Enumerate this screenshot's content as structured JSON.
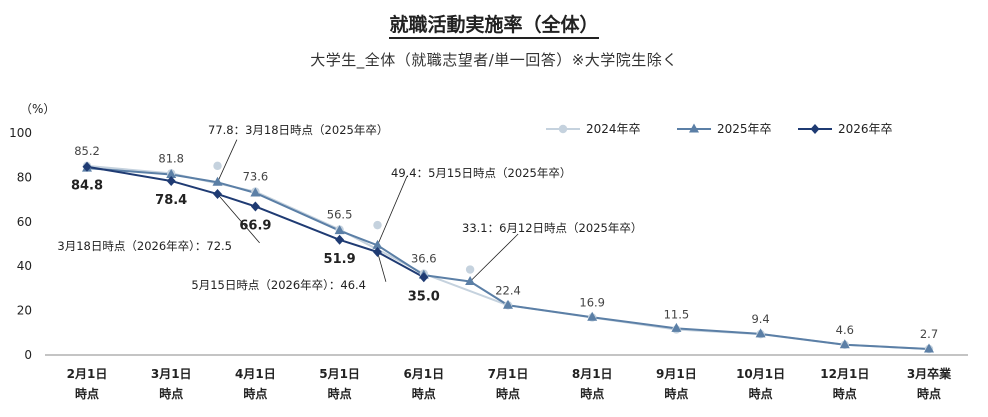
{
  "chart_data": {
    "type": "line",
    "title": "就職活動実施率（全体）",
    "subtitle": "大学生_全体（就職志望者/単一回答）※大学院生除く",
    "y_unit": "（%）",
    "ylim": [
      0,
      100
    ],
    "yticks": [
      "0",
      "20",
      "40",
      "60",
      "80",
      "100"
    ],
    "legend_position": "top-right",
    "categories": [
      "2月1日|時点",
      "3月1日|時点",
      "4月1日|時点",
      "5月1日|時点",
      "6月1日|時点",
      "7月1日|時点",
      "8月1日|時点",
      "9月1日|時点",
      "10月1日|時点",
      "12月1日|時点",
      "3月卒業|時点"
    ],
    "series": [
      {
        "name": "2024年卒",
        "color": "#c5d2de",
        "marker": "circle",
        "points": [
          {
            "x": 0,
            "y": 85.2,
            "label": "85.2"
          },
          {
            "x": 1,
            "y": 81.8,
            "label": "81.8"
          },
          {
            "x": 2,
            "y": 73.6,
            "label": "73.6"
          },
          {
            "x": 3,
            "y": 56.5,
            "label": "56.5"
          },
          {
            "x": 4,
            "y": 36.6,
            "label": "36.6"
          },
          {
            "x": 5,
            "y": 22.4,
            "label": "22.4"
          },
          {
            "x": 6,
            "y": 16.9,
            "label": "16.9"
          },
          {
            "x": 7,
            "y": 11.5,
            "label": "11.5"
          },
          {
            "x": 8,
            "y": 9.4,
            "label": "9.4"
          },
          {
            "x": 9,
            "y": 4.6,
            "label": "4.6"
          },
          {
            "x": 10,
            "y": 2.7,
            "label": "2.7"
          }
        ],
        "extra_points": [
          {
            "x": 1.55,
            "y": 85.2
          },
          {
            "x": 3.45,
            "y": 58.5
          },
          {
            "x": 4.55,
            "y": 38.5
          }
        ]
      },
      {
        "name": "2025年卒",
        "color": "#5b7fa6",
        "marker": "triangle",
        "points": [
          {
            "x": 0,
            "y": 84.2
          },
          {
            "x": 1,
            "y": 81.3
          },
          {
            "x": 1.55,
            "y": 77.8
          },
          {
            "x": 2,
            "y": 73.0
          },
          {
            "x": 3,
            "y": 56.0
          },
          {
            "x": 3.45,
            "y": 49.4
          },
          {
            "x": 4,
            "y": 36.0
          },
          {
            "x": 4.55,
            "y": 33.1
          },
          {
            "x": 5,
            "y": 22.4
          },
          {
            "x": 6,
            "y": 17.0
          },
          {
            "x": 7,
            "y": 12.0
          },
          {
            "x": 8,
            "y": 9.5
          },
          {
            "x": 9,
            "y": 4.6
          },
          {
            "x": 10,
            "y": 2.7
          }
        ]
      },
      {
        "name": "2026年卒",
        "color": "#1f3b73",
        "marker": "diamond",
        "points": [
          {
            "x": 0,
            "y": 84.8,
            "label": "84.8"
          },
          {
            "x": 1,
            "y": 78.4,
            "label": "78.4"
          },
          {
            "x": 1.55,
            "y": 72.5
          },
          {
            "x": 2,
            "y": 66.9,
            "label": "66.9"
          },
          {
            "x": 3,
            "y": 51.9,
            "label": "51.9"
          },
          {
            "x": 3.45,
            "y": 46.4
          },
          {
            "x": 4,
            "y": 35.0,
            "label": "35.0"
          }
        ]
      }
    ],
    "annotations": [
      {
        "text": "77.8：3月18日時点（2025年卒）"
      },
      {
        "text": "3月18日時点（2026年卒）：72.5"
      },
      {
        "text": "49.4：5月15日時点（2025年卒）"
      },
      {
        "text": "5月15日時点（2026年卒）：46.4"
      },
      {
        "text": "33.1：6月12日時点（2025年卒）"
      }
    ]
  }
}
